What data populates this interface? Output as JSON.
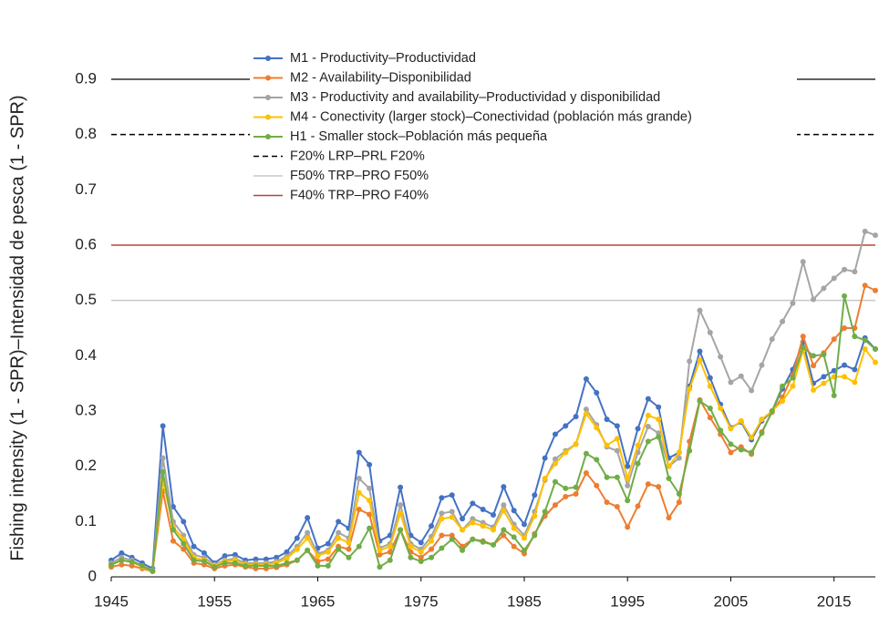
{
  "chart_data": {
    "type": "line",
    "y_label": "Fishing intensity (1 - SPR)–Intensidad de pesca  (1 - SPR)",
    "x": [
      1945,
      1946,
      1947,
      1948,
      1949,
      1950,
      1951,
      1952,
      1953,
      1954,
      1955,
      1956,
      1957,
      1958,
      1959,
      1960,
      1961,
      1962,
      1963,
      1964,
      1965,
      1966,
      1967,
      1968,
      1969,
      1970,
      1971,
      1972,
      1973,
      1974,
      1975,
      1976,
      1977,
      1978,
      1979,
      1980,
      1981,
      1982,
      1983,
      1984,
      1985,
      1986,
      1987,
      1988,
      1989,
      1990,
      1991,
      1992,
      1993,
      1994,
      1995,
      1996,
      1997,
      1998,
      1999,
      2000,
      2001,
      2002,
      2003,
      2004,
      2005,
      2006,
      2007,
      2008,
      2009,
      2010,
      2011,
      2012,
      2013,
      2014,
      2015,
      2016,
      2017,
      2018,
      2019
    ],
    "series": [
      {
        "name": "M1 - Productivity–Productividad",
        "color": "#4472c4",
        "values": [
          0.03,
          0.043,
          0.035,
          0.025,
          0.015,
          0.273,
          0.127,
          0.1,
          0.055,
          0.043,
          0.025,
          0.038,
          0.04,
          0.03,
          0.032,
          0.032,
          0.035,
          0.045,
          0.07,
          0.107,
          0.052,
          0.06,
          0.1,
          0.088,
          0.225,
          0.203,
          0.065,
          0.075,
          0.162,
          0.075,
          0.062,
          0.092,
          0.143,
          0.148,
          0.105,
          0.133,
          0.122,
          0.112,
          0.163,
          0.12,
          0.095,
          0.148,
          0.215,
          0.258,
          0.273,
          0.29,
          0.358,
          0.333,
          0.285,
          0.273,
          0.2,
          0.268,
          0.322,
          0.307,
          0.215,
          0.225,
          0.345,
          0.408,
          0.36,
          0.312,
          0.27,
          0.28,
          0.248,
          0.282,
          0.3,
          0.34,
          0.375,
          0.425,
          0.35,
          0.362,
          0.373,
          0.383,
          0.375,
          0.432,
          0.412
        ]
      },
      {
        "name": "M2 - Availability–Disponibilidad",
        "color": "#ed7d31",
        "values": [
          0.018,
          0.022,
          0.02,
          0.015,
          0.01,
          0.155,
          0.065,
          0.05,
          0.025,
          0.022,
          0.015,
          0.02,
          0.022,
          0.018,
          0.015,
          0.015,
          0.017,
          0.022,
          0.03,
          0.048,
          0.028,
          0.032,
          0.055,
          0.05,
          0.122,
          0.113,
          0.04,
          0.045,
          0.085,
          0.045,
          0.035,
          0.05,
          0.075,
          0.075,
          0.055,
          0.068,
          0.065,
          0.058,
          0.075,
          0.055,
          0.042,
          0.078,
          0.11,
          0.13,
          0.145,
          0.15,
          0.188,
          0.165,
          0.135,
          0.127,
          0.09,
          0.128,
          0.168,
          0.163,
          0.107,
          0.135,
          0.245,
          0.32,
          0.288,
          0.258,
          0.225,
          0.235,
          0.222,
          0.262,
          0.298,
          0.325,
          0.365,
          0.435,
          0.382,
          0.405,
          0.43,
          0.45,
          0.45,
          0.527,
          0.518
        ]
      },
      {
        "name": "M3 - Productivity and availability–Productividad y disponibilidad",
        "color": "#a5a5a5",
        "values": [
          0.025,
          0.035,
          0.03,
          0.02,
          0.012,
          0.215,
          0.1,
          0.075,
          0.04,
          0.035,
          0.022,
          0.03,
          0.033,
          0.025,
          0.025,
          0.025,
          0.028,
          0.037,
          0.055,
          0.08,
          0.042,
          0.048,
          0.08,
          0.07,
          0.178,
          0.16,
          0.052,
          0.06,
          0.13,
          0.06,
          0.05,
          0.073,
          0.115,
          0.118,
          0.085,
          0.105,
          0.098,
          0.09,
          0.13,
          0.095,
          0.075,
          0.118,
          0.175,
          0.213,
          0.228,
          0.24,
          0.303,
          0.275,
          0.235,
          0.228,
          0.165,
          0.225,
          0.272,
          0.26,
          0.2,
          0.215,
          0.39,
          0.482,
          0.442,
          0.398,
          0.352,
          0.363,
          0.337,
          0.383,
          0.43,
          0.462,
          0.495,
          0.57,
          0.502,
          0.522,
          0.54,
          0.556,
          0.552,
          0.625,
          0.618
        ]
      },
      {
        "name": "M4 - Conectivity (larger stock)–Conectividad (población más grande)",
        "color": "#ffc000",
        "values": [
          0.022,
          0.03,
          0.027,
          0.018,
          0.01,
          0.175,
          0.09,
          0.068,
          0.035,
          0.03,
          0.02,
          0.028,
          0.03,
          0.022,
          0.022,
          0.022,
          0.025,
          0.033,
          0.05,
          0.07,
          0.038,
          0.045,
          0.07,
          0.062,
          0.152,
          0.138,
          0.048,
          0.055,
          0.115,
          0.055,
          0.045,
          0.065,
          0.105,
          0.108,
          0.085,
          0.098,
          0.092,
          0.085,
          0.12,
          0.088,
          0.07,
          0.11,
          0.178,
          0.205,
          0.225,
          0.24,
          0.295,
          0.27,
          0.238,
          0.25,
          0.178,
          0.238,
          0.292,
          0.285,
          0.2,
          0.225,
          0.34,
          0.392,
          0.345,
          0.305,
          0.268,
          0.282,
          0.252,
          0.285,
          0.3,
          0.318,
          0.345,
          0.41,
          0.338,
          0.35,
          0.362,
          0.362,
          0.352,
          0.412,
          0.388
        ]
      },
      {
        "name": "H1 - Smaller stock–Población más pequeña",
        "color": "#70ad47",
        "values": [
          0.022,
          0.03,
          0.027,
          0.02,
          0.01,
          0.19,
          0.085,
          0.06,
          0.03,
          0.028,
          0.018,
          0.025,
          0.025,
          0.02,
          0.02,
          0.02,
          0.02,
          0.025,
          0.03,
          0.048,
          0.02,
          0.02,
          0.05,
          0.035,
          0.055,
          0.088,
          0.018,
          0.03,
          0.085,
          0.035,
          0.028,
          0.035,
          0.052,
          0.068,
          0.048,
          0.068,
          0.063,
          0.058,
          0.085,
          0.072,
          0.048,
          0.075,
          0.118,
          0.172,
          0.16,
          0.162,
          0.223,
          0.212,
          0.18,
          0.18,
          0.138,
          0.205,
          0.245,
          0.253,
          0.178,
          0.15,
          0.228,
          0.318,
          0.305,
          0.265,
          0.24,
          0.23,
          0.225,
          0.26,
          0.3,
          0.345,
          0.36,
          0.415,
          0.4,
          0.402,
          0.328,
          0.508,
          0.435,
          0.428,
          0.412
        ]
      }
    ],
    "reference_lines": [
      {
        "name": "F20% LRP–PRL F20%",
        "value": 0.8,
        "color": "#000000",
        "dashed": true
      },
      {
        "name": "F50% TRP–PRO F50%",
        "value": 0.5,
        "color": "#c8c8c8",
        "dashed": false
      },
      {
        "name": "F40% TRP–PRO F40%",
        "value": 0.6,
        "color": "#b5473a",
        "dashed": false
      }
    ],
    "xlim": [
      1945,
      2019
    ],
    "xticks": [
      1945,
      1955,
      1965,
      1975,
      1985,
      1995,
      2005,
      2015
    ],
    "ylim": [
      0,
      0.9
    ],
    "yticks": [
      0,
      0.1,
      0.2,
      0.3,
      0.4,
      0.5,
      0.6,
      0.7,
      0.8,
      0.9
    ]
  }
}
